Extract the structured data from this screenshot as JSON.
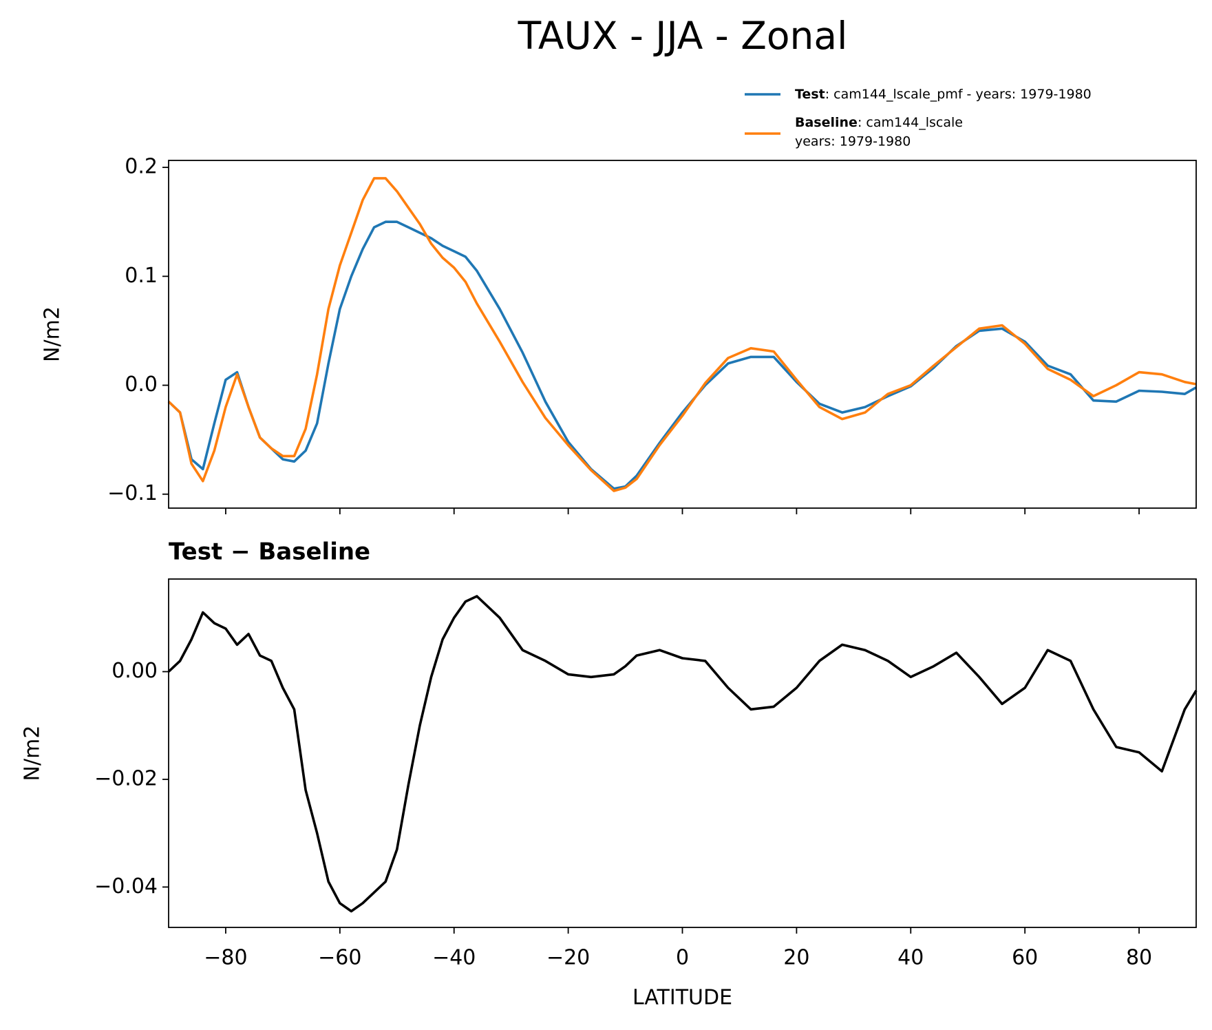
{
  "chart_data": [
    {
      "type": "line",
      "title": "TAUX - JJA - Zonal",
      "ylabel": "N/m2",
      "x": [
        -90,
        -88,
        -86,
        -84,
        -82,
        -80,
        -78,
        -76,
        -74,
        -72,
        -70,
        -68,
        -66,
        -64,
        -62,
        -60,
        -58,
        -56,
        -54,
        -52,
        -50,
        -48,
        -46,
        -44,
        -42,
        -40,
        -38,
        -36,
        -32,
        -28,
        -24,
        -20,
        -16,
        -12,
        -10,
        -8,
        -4,
        0,
        4,
        8,
        12,
        16,
        20,
        24,
        28,
        32,
        36,
        40,
        44,
        48,
        52,
        56,
        60,
        64,
        68,
        72,
        76,
        80,
        84,
        88,
        90
      ],
      "series": [
        {
          "name": "Test",
          "label": ": cam144_lscale_pmf - years: 1979-1980",
          "color": "#1f77b4",
          "values": [
            -0.015,
            -0.025,
            -0.068,
            -0.077,
            -0.035,
            0.005,
            0.012,
            -0.02,
            -0.048,
            -0.058,
            -0.068,
            -0.07,
            -0.06,
            -0.035,
            0.02,
            0.07,
            0.1,
            0.125,
            0.145,
            0.15,
            0.15,
            0.145,
            0.14,
            0.135,
            0.128,
            0.123,
            0.118,
            0.105,
            0.07,
            0.03,
            -0.015,
            -0.052,
            -0.077,
            -0.095,
            -0.093,
            -0.083,
            -0.053,
            -0.025,
            0.0,
            0.02,
            0.026,
            0.026,
            0.003,
            -0.017,
            -0.025,
            -0.02,
            -0.01,
            -0.001,
            0.016,
            0.036,
            0.05,
            0.052,
            0.04,
            0.018,
            0.01,
            -0.014,
            -0.015,
            -0.005,
            -0.006,
            -0.008,
            -0.002
          ]
        },
        {
          "name": "Baseline",
          "label_lines": [
            ": cam144_lscale",
            "years: 1979-1980"
          ],
          "color": "#ff7f0e",
          "values": [
            -0.015,
            -0.025,
            -0.072,
            -0.088,
            -0.06,
            -0.02,
            0.01,
            -0.02,
            -0.048,
            -0.058,
            -0.065,
            -0.065,
            -0.04,
            0.01,
            0.07,
            0.11,
            0.14,
            0.17,
            0.19,
            0.19,
            0.178,
            0.163,
            0.148,
            0.13,
            0.117,
            0.108,
            0.095,
            0.075,
            0.04,
            0.003,
            -0.03,
            -0.055,
            -0.078,
            -0.097,
            -0.094,
            -0.086,
            -0.055,
            -0.028,
            0.002,
            0.025,
            0.034,
            0.031,
            0.005,
            -0.02,
            -0.031,
            -0.025,
            -0.008,
            0.0,
            0.018,
            0.035,
            0.052,
            0.055,
            0.038,
            0.015,
            0.005,
            -0.01,
            0.0,
            0.012,
            0.01,
            0.003,
            0.001
          ]
        }
      ],
      "xlim": [
        -90,
        90
      ],
      "xticks": [
        -80,
        -60,
        -40,
        -20,
        0,
        20,
        40,
        60,
        80
      ],
      "xtick_labels": false,
      "ylim": [
        -0.1128,
        0.2064
      ],
      "yticks": [
        {
          "value": -0.1,
          "label": "−0.1"
        },
        {
          "value": 0.0,
          "label": "0.0"
        },
        0.1,
        0.2
      ],
      "legend": "upper right"
    },
    {
      "type": "line",
      "title": "Test − Baseline",
      "xlabel": "LATITUDE",
      "ylabel": "N/m2",
      "x": [
        -90,
        -88,
        -86,
        -84,
        -82,
        -80,
        -78,
        -76,
        -74,
        -72,
        -70,
        -68,
        -66,
        -64,
        -62,
        -60,
        -58,
        -56,
        -54,
        -52,
        -50,
        -48,
        -46,
        -44,
        -42,
        -40,
        -38,
        -36,
        -32,
        -28,
        -24,
        -20,
        -16,
        -12,
        -10,
        -8,
        -4,
        0,
        4,
        8,
        12,
        16,
        20,
        24,
        28,
        32,
        36,
        40,
        44,
        48,
        52,
        56,
        60,
        64,
        68,
        72,
        76,
        80,
        84,
        88,
        90
      ],
      "series": [
        {
          "color": "#000000",
          "values": [
            0.0,
            0.002,
            0.006,
            0.011,
            0.009,
            0.008,
            0.005,
            0.007,
            0.003,
            0.002,
            -0.003,
            -0.007,
            -0.022,
            -0.03,
            -0.039,
            -0.043,
            -0.0445,
            -0.043,
            -0.041,
            -0.039,
            -0.033,
            -0.021,
            -0.01,
            -0.001,
            0.006,
            0.01,
            0.013,
            0.014,
            0.01,
            0.004,
            0.002,
            -0.0005,
            -0.001,
            -0.0005,
            0.001,
            0.003,
            0.004,
            0.0025,
            0.002,
            -0.003,
            -0.007,
            -0.0065,
            -0.003,
            0.002,
            0.005,
            0.004,
            0.002,
            -0.001,
            0.001,
            0.0035,
            -0.001,
            -0.006,
            -0.003,
            0.004,
            0.002,
            -0.007,
            -0.014,
            -0.015,
            -0.0185,
            -0.007,
            -0.0035
          ]
        }
      ],
      "xlim": [
        -90,
        90
      ],
      "xticks": [
        {
          "value": -80,
          "label": "−80"
        },
        {
          "value": -60,
          "label": "−60"
        },
        {
          "value": -40,
          "label": "−40"
        },
        {
          "value": -20,
          "label": "−20"
        },
        0,
        20,
        40,
        60,
        80
      ],
      "ylim": [
        -0.0475,
        0.0172
      ],
      "yticks": [
        {
          "value": -0.04,
          "label": "−0.04"
        },
        {
          "value": -0.02,
          "label": "−0.02"
        },
        {
          "value": 0.0,
          "label": "0.00"
        }
      ]
    }
  ]
}
